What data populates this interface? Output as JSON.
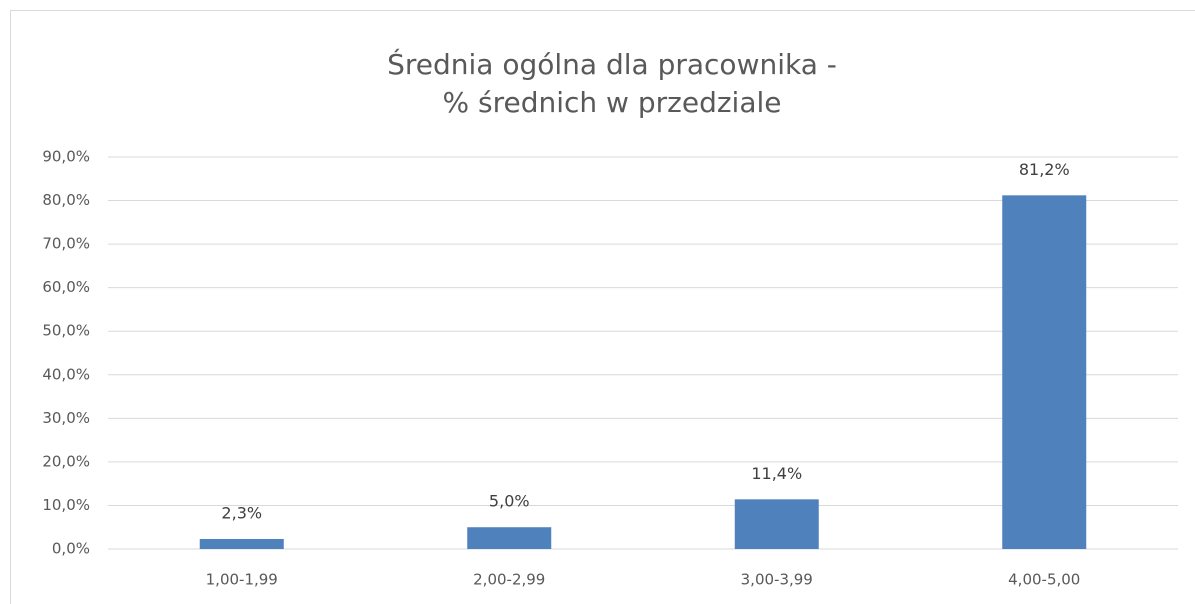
{
  "chart_data": {
    "type": "bar",
    "title": [
      "Średnia ogólna dla pracownika -",
      "% średnich w przedziale"
    ],
    "categories": [
      "1,00-1,99",
      "2,00-2,99",
      "3,00-3,99",
      "4,00-5,00"
    ],
    "values": [
      2.3,
      5.0,
      11.4,
      81.2
    ],
    "value_labels": [
      "2,3%",
      "5,0%",
      "11,4%",
      "81,2%"
    ],
    "color": "#4f81bd",
    "ylim": [
      0,
      90
    ],
    "yticks": [
      {
        "value": 0,
        "label": "0,0%"
      },
      {
        "value": 10,
        "label": "10,0%"
      },
      {
        "value": 20,
        "label": "20,0%"
      },
      {
        "value": 30,
        "label": "30,0%"
      },
      {
        "value": 40,
        "label": "40,0%"
      },
      {
        "value": 50,
        "label": "50,0%"
      },
      {
        "value": 60,
        "label": "60,0%"
      },
      {
        "value": 70,
        "label": "70,0%"
      },
      {
        "value": 80,
        "label": "80,0%"
      },
      {
        "value": 90,
        "label": "90,0%"
      }
    ],
    "grid": true
  }
}
